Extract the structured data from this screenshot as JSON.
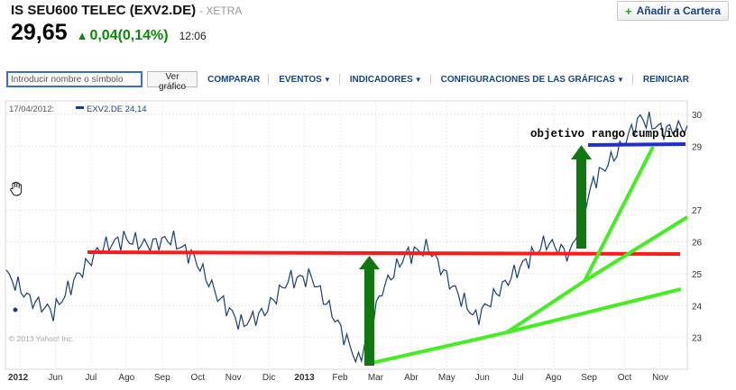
{
  "header": {
    "title": "IS SEU600 TELEC (EXV2.DE)",
    "exchange": "- XETRA",
    "price": "29,65",
    "change": "0,04(0,14%)",
    "time": "12:06",
    "add_label": "Añadir a Cartera"
  },
  "toolbar": {
    "search_placeholder": "Introducir nombre o símbolo",
    "view_chart_label": "Ver gráfico",
    "items": [
      "COMPARAR",
      "EVENTOS",
      "INDICADORES",
      "CONFIGURACIONES DE LAS GRÁFICAS",
      "REINICIAR"
    ]
  },
  "chart_data": {
    "type": "line",
    "info_date": "17/04/2012:",
    "series_label": "EXV2.DE 24,14",
    "x_tick_labels": [
      "2012",
      "Jun",
      "Jul",
      "Ago",
      "Sep",
      "Oct",
      "Nov",
      "Dic",
      "2013",
      "Feb",
      "Mar",
      "Abr",
      "May",
      "Jun",
      "Jul",
      "Ago",
      "Sep",
      "Oct",
      "Nov"
    ],
    "y_ticks": [
      23,
      24,
      25,
      26,
      27,
      29,
      30
    ],
    "ylim": [
      22,
      30.4
    ],
    "x": [
      0,
      4,
      8,
      12,
      16,
      20,
      24,
      28,
      32,
      36,
      40,
      44,
      48,
      52,
      56,
      60,
      64,
      68,
      72,
      76,
      80,
      84,
      88,
      92,
      96,
      100,
      104,
      108,
      112,
      116
    ],
    "values": [
      25.0,
      24.2,
      23.8,
      24.9,
      25.8,
      26.1,
      25.9,
      26.1,
      25.5,
      24.3,
      23.4,
      23.8,
      24.8,
      24.9,
      23.6,
      22.2,
      24.5,
      25.6,
      25.8,
      24.6,
      23.6,
      24.5,
      25.3,
      26.0,
      25.6,
      27.9,
      28.8,
      29.9,
      29.5,
      29.65
    ],
    "annotation": "objetivo rango cumplido",
    "copyright": "© 2013 Yahoo! Inc.",
    "colors": {
      "price": "#1a3f7a",
      "resistance": "#ff1a1a",
      "target": "#1f2fd6",
      "trend": "#44ee22",
      "arrow": "#117711"
    }
  }
}
